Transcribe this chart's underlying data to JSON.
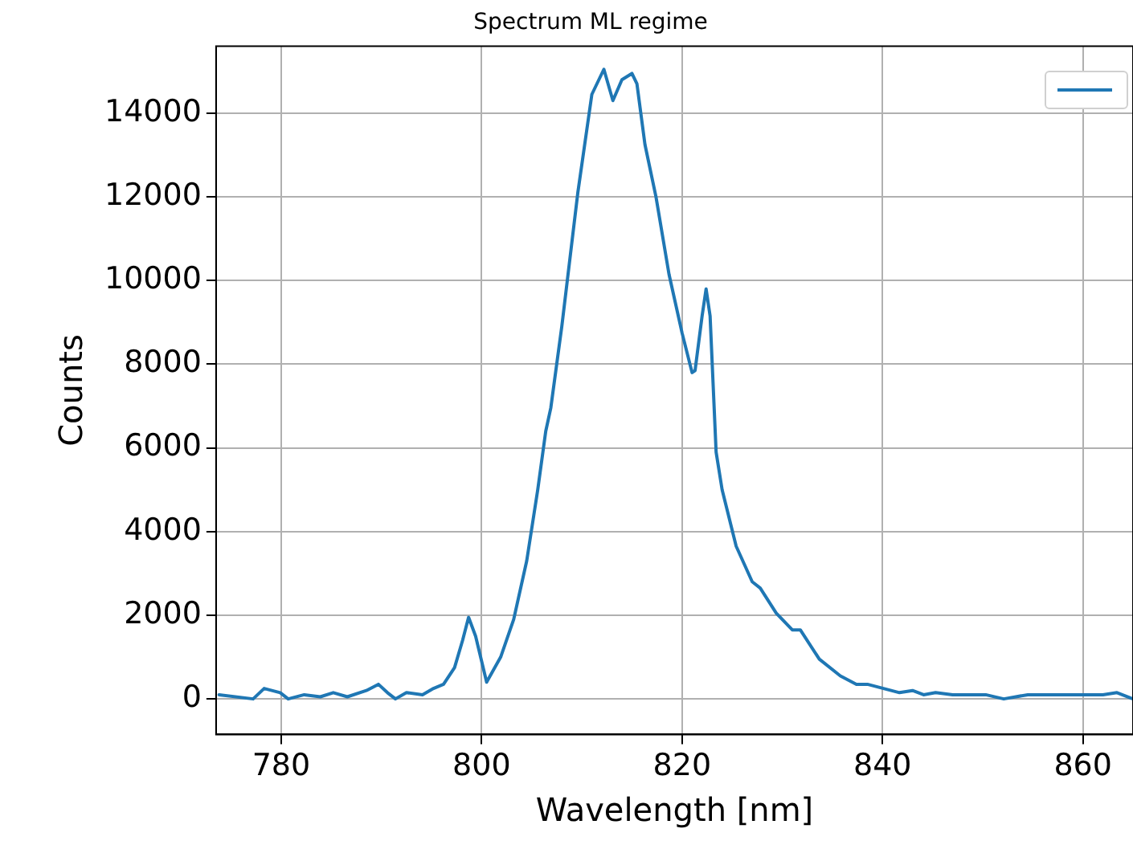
{
  "chart_data": {
    "type": "line",
    "title": "Spectrum ML regime",
    "xlabel": "Wavelength [nm]",
    "ylabel": "Counts",
    "xlim": [
      773.5,
      865
    ],
    "ylim": [
      -850,
      15600
    ],
    "xticks": [
      780,
      800,
      820,
      840,
      860
    ],
    "yticks": [
      0,
      2000,
      4000,
      6000,
      8000,
      10000,
      12000,
      14000
    ],
    "grid": true,
    "marker": "none",
    "line_style": "solid",
    "series": [
      {
        "color": "#1f77b4",
        "x": [
          773.8,
          777.2,
          778.3,
          779.9,
          780.7,
          782.3,
          783.9,
          785.2,
          786.6,
          788.5,
          789.7,
          790.6,
          791.4,
          792.5,
          794.1,
          795.2,
          796.2,
          797.3,
          798.1,
          798.7,
          799.4,
          800.5,
          801.9,
          803.2,
          804.5,
          805.6,
          806.4,
          806.9,
          808.0,
          809.6,
          811.0,
          812.2,
          813.1,
          814.0,
          815.0,
          815.5,
          816.3,
          817.4,
          818.7,
          820.0,
          821.0,
          821.3,
          822.0,
          822.4,
          822.8,
          823.4,
          824.0,
          825.4,
          827.0,
          827.8,
          829.4,
          831.0,
          831.8,
          833.7,
          835.8,
          837.4,
          838.5,
          840.1,
          841.7,
          843.0,
          844.1,
          845.3,
          847.0,
          850.3,
          852.1,
          854.5,
          858.3,
          862.0,
          863.4,
          865.0
        ],
        "values": [
          100,
          0,
          250,
          150,
          0,
          100,
          50,
          150,
          50,
          200,
          350,
          150,
          0,
          150,
          100,
          250,
          350,
          750,
          1400,
          1950,
          1500,
          400,
          1000,
          1900,
          3300,
          5000,
          6400,
          6950,
          8900,
          12100,
          14450,
          15050,
          14300,
          14800,
          14950,
          14700,
          13250,
          12000,
          10150,
          8750,
          7800,
          7850,
          9150,
          9800,
          9150,
          5900,
          5000,
          3650,
          2800,
          2650,
          2050,
          1650,
          1650,
          950,
          550,
          350,
          350,
          250,
          150,
          200,
          100,
          150,
          100,
          100,
          0,
          100,
          100,
          100,
          150,
          0
        ]
      }
    ]
  }
}
